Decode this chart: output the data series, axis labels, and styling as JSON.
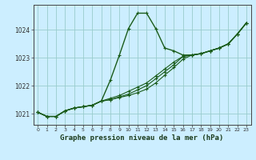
{
  "title": "Graphe pression niveau de la mer (hPa)",
  "bg_color": "#cceeff",
  "grid_color": "#99cccc",
  "line_color": "#1a5c1a",
  "xlim": [
    -0.5,
    23.5
  ],
  "ylim": [
    1020.6,
    1024.9
  ],
  "yticks": [
    1021,
    1022,
    1023,
    1024
  ],
  "xticks": [
    0,
    1,
    2,
    3,
    4,
    5,
    6,
    7,
    8,
    9,
    10,
    11,
    12,
    13,
    14,
    15,
    16,
    17,
    18,
    19,
    20,
    21,
    22,
    23
  ],
  "series1": [
    1021.05,
    1020.9,
    1020.9,
    1021.1,
    1021.2,
    1021.25,
    1021.3,
    1021.45,
    1022.2,
    1023.1,
    1024.05,
    1024.6,
    1024.6,
    1024.05,
    1023.35,
    1023.25,
    1023.1,
    1023.1,
    1023.15,
    1023.25,
    1023.35,
    1023.5,
    1023.85,
    1024.25
  ],
  "series2": [
    1021.05,
    1020.9,
    1020.9,
    1021.1,
    1021.2,
    1021.25,
    1021.3,
    1021.45,
    1021.55,
    1021.65,
    1021.8,
    1021.95,
    1022.1,
    1022.35,
    1022.6,
    1022.85,
    1023.05,
    1023.1,
    1023.15,
    1023.25,
    1023.35,
    1023.5,
    1023.85,
    1024.25
  ],
  "series3": [
    1021.05,
    1020.9,
    1020.9,
    1021.1,
    1021.2,
    1021.25,
    1021.3,
    1021.45,
    1021.5,
    1021.6,
    1021.7,
    1021.85,
    1022.0,
    1022.25,
    1022.5,
    1022.75,
    1023.05,
    1023.1,
    1023.15,
    1023.25,
    1023.35,
    1023.5,
    1023.85,
    1024.25
  ],
  "series4": [
    1021.05,
    1020.9,
    1020.9,
    1021.1,
    1021.2,
    1021.25,
    1021.3,
    1021.45,
    1021.5,
    1021.58,
    1021.65,
    1021.75,
    1021.88,
    1022.1,
    1022.38,
    1022.65,
    1022.95,
    1023.1,
    1023.15,
    1023.25,
    1023.35,
    1023.5,
    1023.85,
    1024.25
  ],
  "ylabel_fontsize": 5.5,
  "xlabel_fontsize": 5.5,
  "title_fontsize": 6.5
}
